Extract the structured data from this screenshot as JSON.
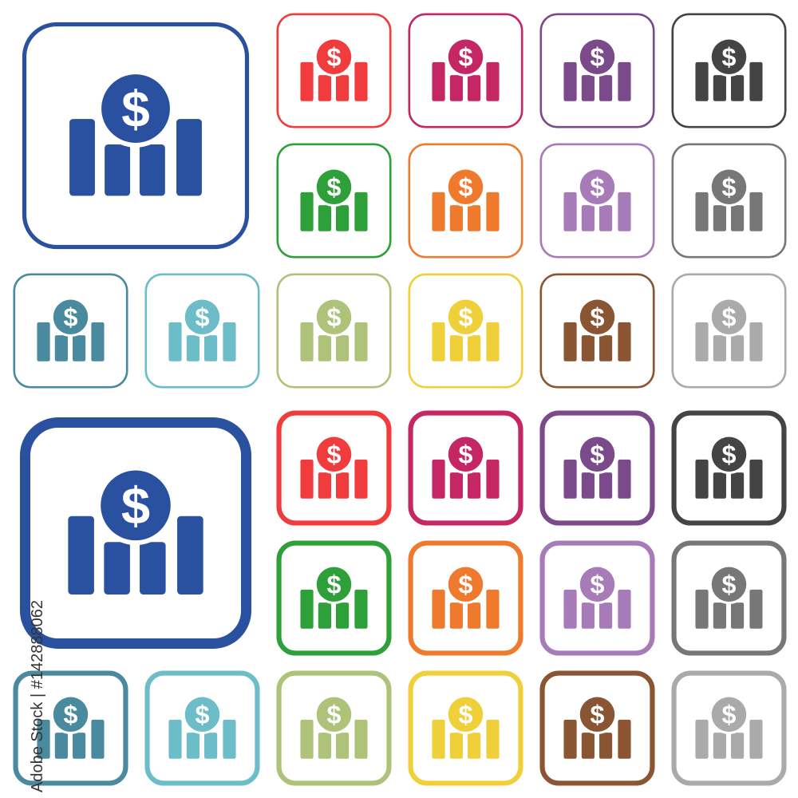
{
  "icon_name": "dollar-bar-chart-icon",
  "sets": [
    {
      "style": "thin-outline",
      "large": {
        "color": "#2a50a0"
      },
      "small": [
        {
          "row": 0,
          "col": 2,
          "color": "#f03c3c"
        },
        {
          "row": 0,
          "col": 3,
          "color": "#c42764"
        },
        {
          "row": 0,
          "col": 4,
          "color": "#7b4a8a"
        },
        {
          "row": 0,
          "col": 5,
          "color": "#444444"
        },
        {
          "row": 1,
          "col": 2,
          "color": "#2ea03a"
        },
        {
          "row": 1,
          "col": 3,
          "color": "#ef7a2e"
        },
        {
          "row": 1,
          "col": 4,
          "color": "#a77ab8"
        },
        {
          "row": 1,
          "col": 5,
          "color": "#777777"
        },
        {
          "row": 2,
          "col": 0,
          "color": "#4a8a9e"
        },
        {
          "row": 2,
          "col": 1,
          "color": "#6cbdc7"
        },
        {
          "row": 2,
          "col": 2,
          "color": "#afc27a"
        },
        {
          "row": 2,
          "col": 3,
          "color": "#f0d03a"
        },
        {
          "row": 2,
          "col": 4,
          "color": "#8a5533"
        },
        {
          "row": 2,
          "col": 5,
          "color": "#aaaaaa"
        }
      ]
    },
    {
      "style": "thick-outline",
      "large": {
        "color": "#2a50a0"
      },
      "small": [
        {
          "row": 0,
          "col": 2,
          "color": "#f03c3c"
        },
        {
          "row": 0,
          "col": 3,
          "color": "#c42764"
        },
        {
          "row": 0,
          "col": 4,
          "color": "#7b4a8a"
        },
        {
          "row": 0,
          "col": 5,
          "color": "#444444"
        },
        {
          "row": 1,
          "col": 2,
          "color": "#2ea03a"
        },
        {
          "row": 1,
          "col": 3,
          "color": "#ef7a2e"
        },
        {
          "row": 1,
          "col": 4,
          "color": "#a77ab8"
        },
        {
          "row": 1,
          "col": 5,
          "color": "#777777"
        },
        {
          "row": 2,
          "col": 0,
          "color": "#4a8a9e"
        },
        {
          "row": 2,
          "col": 1,
          "color": "#6cbdc7"
        },
        {
          "row": 2,
          "col": 2,
          "color": "#afc27a"
        },
        {
          "row": 2,
          "col": 3,
          "color": "#f0d03a"
        },
        {
          "row": 2,
          "col": 4,
          "color": "#8a5533"
        },
        {
          "row": 2,
          "col": 5,
          "color": "#aaaaaa"
        }
      ]
    }
  ],
  "watermark": "Adobe Stock | #142888062"
}
